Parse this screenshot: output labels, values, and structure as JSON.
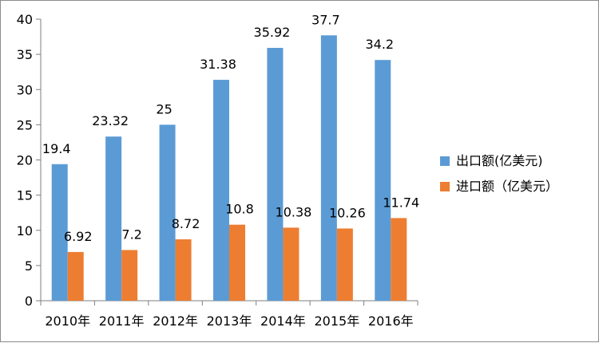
{
  "chart_data": {
    "type": "bar",
    "categories": [
      "2010年",
      "2011年",
      "2012年",
      "2013年",
      "2014年",
      "2015年",
      "2016年"
    ],
    "series": [
      {
        "name": "出口额(亿美元)",
        "color": "#5b9bd5",
        "values": [
          19.4,
          23.32,
          25,
          31.38,
          35.92,
          37.7,
          34.2
        ]
      },
      {
        "name": "进口额（亿美元）",
        "color": "#ed7d31",
        "values": [
          6.92,
          7.2,
          8.72,
          10.8,
          10.38,
          10.26,
          11.74
        ]
      }
    ],
    "data_labels": [
      [
        "19.4",
        "23.32",
        "25",
        "31.38",
        "35.92",
        "37.7",
        "34.2"
      ],
      [
        "6.92",
        "7.2",
        "8.72",
        "10.8",
        "10.38",
        "10.26",
        "11.74"
      ]
    ],
    "y_ticks": [
      "0",
      "5",
      "10",
      "15",
      "20",
      "25",
      "30",
      "35",
      "40"
    ],
    "ylim": [
      0,
      40
    ],
    "grid": false,
    "legend_position": "right"
  }
}
